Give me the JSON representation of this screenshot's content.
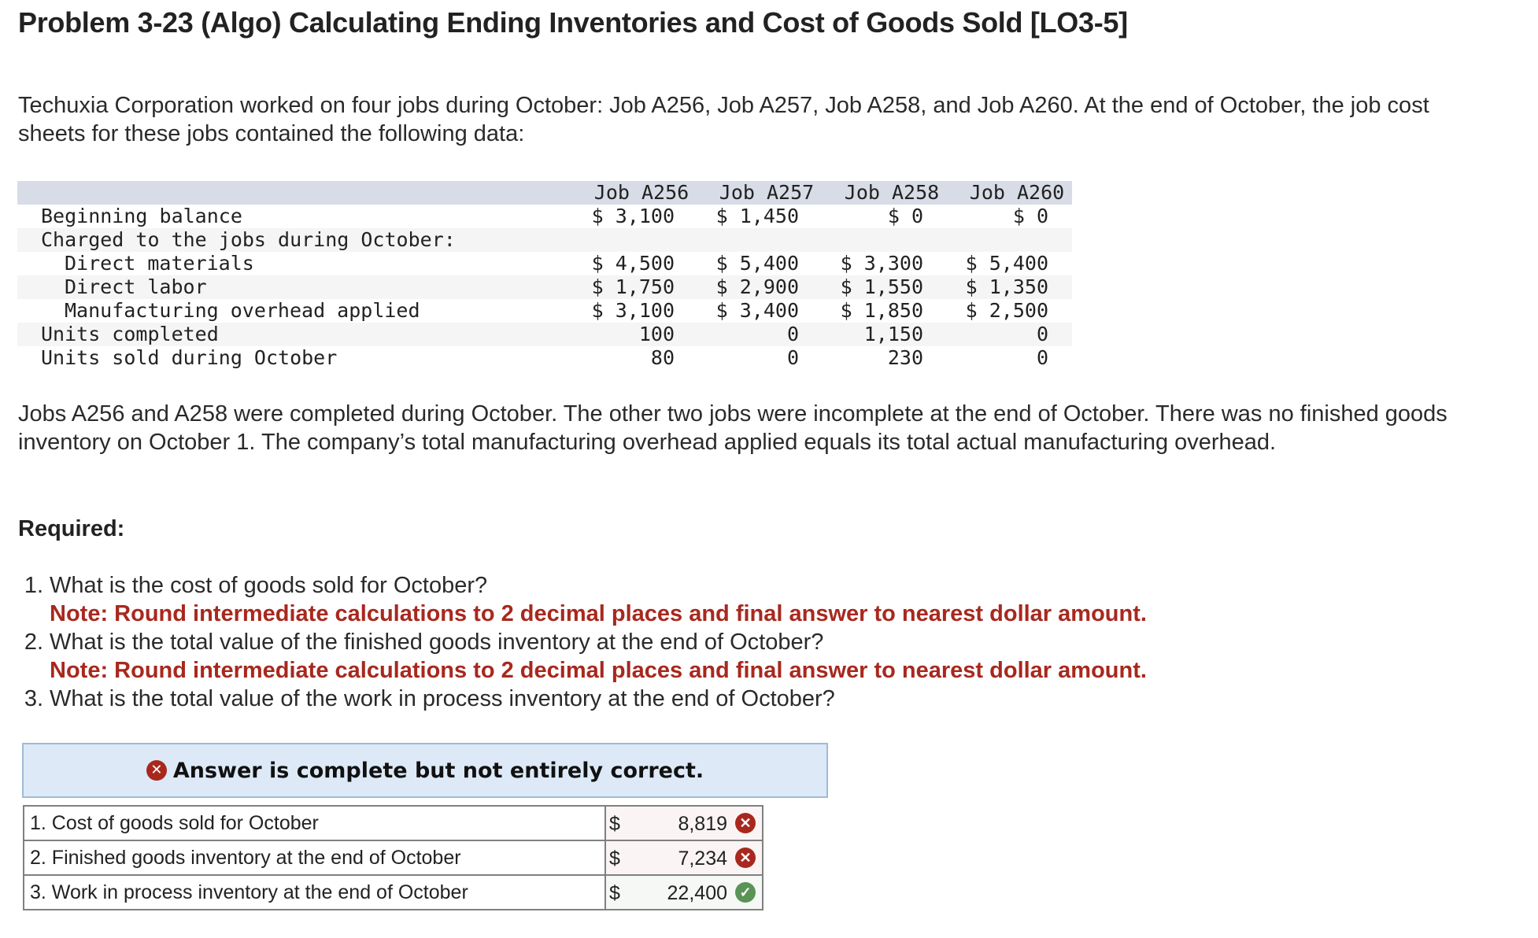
{
  "title": "Problem 3-23 (Algo) Calculating Ending Inventories and Cost of Goods Sold [LO3-5]",
  "intro": "Techuxia Corporation worked on four jobs during October: Job A256, Job A257, Job A258, and Job A260. At the end of October, the job cost sheets for these jobs contained the following data:",
  "job_table": {
    "headers": [
      "Job A256",
      "Job A257",
      "Job A258",
      "Job A260"
    ],
    "rows": [
      {
        "label": "Beginning balance",
        "indent": false,
        "values": [
          "$ 3,100",
          "$ 1,450",
          "$ 0",
          "$ 0"
        ]
      },
      {
        "label": "Charged to the jobs during October:",
        "indent": false,
        "values": [
          "",
          "",
          "",
          ""
        ]
      },
      {
        "label": "Direct materials",
        "indent": true,
        "values": [
          "$ 4,500",
          "$ 5,400",
          "$ 3,300",
          "$ 5,400"
        ]
      },
      {
        "label": "Direct labor",
        "indent": true,
        "values": [
          "$ 1,750",
          "$ 2,900",
          "$ 1,550",
          "$ 1,350"
        ]
      },
      {
        "label": "Manufacturing overhead applied",
        "indent": true,
        "values": [
          "$ 3,100",
          "$ 3,400",
          "$ 1,850",
          "$ 2,500"
        ]
      },
      {
        "label": "Units completed",
        "indent": false,
        "values": [
          "100",
          "0",
          "1,150",
          "0"
        ]
      },
      {
        "label": "Units sold during October",
        "indent": false,
        "values": [
          "80",
          "0",
          "230",
          "0"
        ]
      }
    ]
  },
  "info": "Jobs A256 and A258 were completed during October. The other two jobs were incomplete at the end of October. There was no finished goods inventory on October 1. The company’s total manufacturing overhead applied equals its total actual manufacturing overhead.",
  "required_label": "Required:",
  "questions": [
    {
      "num": "1.",
      "text": "What is the cost of goods sold for October?",
      "note": "Note: Round intermediate calculations to 2 decimal places and final answer to nearest dollar amount."
    },
    {
      "num": "2.",
      "text": "What is the total value of the finished goods inventory at the end of October?",
      "note": "Note: Round intermediate calculations to 2 decimal places and final answer to nearest dollar amount."
    },
    {
      "num": "3.",
      "text": "What is the total value of the work in process inventory at the end of October?",
      "note": null
    }
  ],
  "answer": {
    "status_icon": "x-circle-icon",
    "status_text": "Answer is complete but not entirely correct.",
    "rows": [
      {
        "label": "1. Cost of goods sold for October",
        "currency": "$",
        "value": "8,819",
        "result": "incorrect",
        "icon": "✕"
      },
      {
        "label": "2. Finished goods inventory at the end of October",
        "currency": "$",
        "value": "7,234",
        "result": "incorrect",
        "icon": "✕"
      },
      {
        "label": "3. Work in process inventory at the end of October",
        "currency": "$",
        "value": "22,400",
        "result": "correct",
        "icon": "✓"
      }
    ]
  },
  "colors": {
    "note_red": "#a8281e",
    "incorrect": "#a8281e",
    "correct": "#5b9357",
    "answer_box_bg": "#dde9f7",
    "table_header_bg": "#d8dce6"
  }
}
